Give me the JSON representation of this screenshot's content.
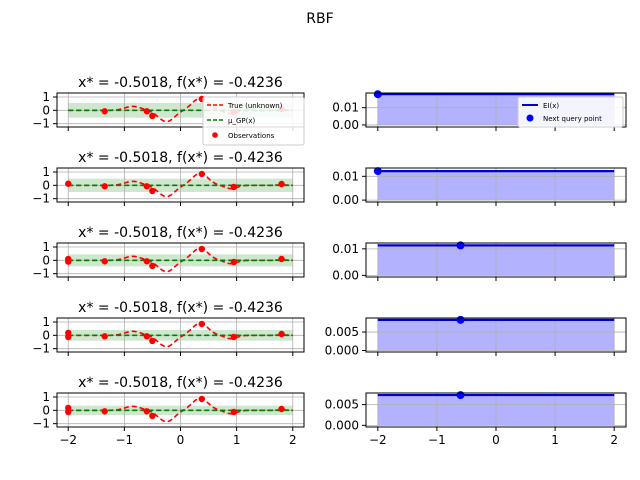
{
  "suptitle": "RBF",
  "chart_data": {
    "type": "line",
    "grid": true,
    "rows": [
      {
        "left": {
          "title": "x* = -0.5018, f(x*) = -0.4236",
          "xlim": [
            -2.2,
            2.2
          ],
          "ylim": [
            -1.25,
            1.3
          ],
          "yticks": [
            {
              "v": 1,
              "label": "1"
            },
            {
              "v": 0,
              "label": "0"
            },
            {
              "v": -1,
              "label": "−1"
            }
          ],
          "observations": [
            [
              -1.35,
              -0.07
            ],
            [
              -0.6,
              -0.07
            ],
            [
              -0.5018,
              -0.42
            ],
            [
              0.38,
              0.85
            ],
            [
              0.95,
              -0.12
            ],
            [
              1.8,
              0.1
            ]
          ],
          "band_halfwidth": 0.55,
          "mean_value": 0.0
        },
        "right": {
          "ylim": [
            -0.0012,
            0.0185
          ],
          "yticks": [
            {
              "v": 0.01,
              "label": "0.01"
            },
            {
              "v": 0,
              "label": "0.00"
            }
          ],
          "ei_value": 0.0178,
          "next_query_point": [
            -2.0,
            0.0178
          ]
        }
      },
      {
        "left": {
          "title": "x* = -0.5018, f(x*) = -0.4236",
          "xlim": [
            -2.2,
            2.2
          ],
          "ylim": [
            -1.25,
            1.3
          ],
          "yticks": [
            {
              "v": 1,
              "label": "1"
            },
            {
              "v": 0,
              "label": "0"
            },
            {
              "v": -1,
              "label": "−1"
            }
          ],
          "observations": [
            [
              -2.0,
              0.12
            ],
            [
              -1.35,
              -0.07
            ],
            [
              -0.6,
              -0.07
            ],
            [
              -0.5018,
              -0.42
            ],
            [
              0.38,
              0.85
            ],
            [
              0.95,
              -0.12
            ],
            [
              1.8,
              0.1
            ]
          ],
          "band_halfwidth": 0.5,
          "mean_value": 0.0
        },
        "right": {
          "ylim": [
            -0.0008,
            0.0135
          ],
          "yticks": [
            {
              "v": 0.01,
              "label": "0.01"
            },
            {
              "v": 0,
              "label": "0.00"
            }
          ],
          "ei_value": 0.0122,
          "next_query_point": [
            -2.0,
            0.0122
          ]
        }
      },
      {
        "left": {
          "title": "x* = -0.5018, f(x*) = -0.4236",
          "xlim": [
            -2.2,
            2.2
          ],
          "ylim": [
            -1.25,
            1.3
          ],
          "yticks": [
            {
              "v": 1,
              "label": "1"
            },
            {
              "v": 0,
              "label": "0"
            },
            {
              "v": -1,
              "label": "−1"
            }
          ],
          "observations": [
            [
              -2.0,
              0.1
            ],
            [
              -2.0,
              -0.1
            ],
            [
              -1.35,
              -0.07
            ],
            [
              -0.6,
              -0.07
            ],
            [
              -0.5018,
              -0.42
            ],
            [
              0.38,
              0.85
            ],
            [
              0.95,
              -0.12
            ],
            [
              1.8,
              0.1
            ]
          ],
          "band_halfwidth": 0.45,
          "mean_value": 0.0
        },
        "right": {
          "ylim": [
            -0.0006,
            0.0122
          ],
          "yticks": [
            {
              "v": 0.01,
              "label": "0.01"
            },
            {
              "v": 0,
              "label": "0.00"
            }
          ],
          "ei_value": 0.0113,
          "next_query_point": [
            -0.6,
            0.0113
          ]
        }
      },
      {
        "left": {
          "title": "x* = -0.5018, f(x*) = -0.4236",
          "xlim": [
            -2.2,
            2.2
          ],
          "ylim": [
            -1.25,
            1.3
          ],
          "yticks": [
            {
              "v": 1,
              "label": "1"
            },
            {
              "v": 0,
              "label": "0"
            },
            {
              "v": -1,
              "label": "−1"
            }
          ],
          "observations": [
            [
              -2.0,
              0.18
            ],
            [
              -2.0,
              -0.12
            ],
            [
              -1.35,
              -0.07
            ],
            [
              -0.6,
              -0.07
            ],
            [
              -0.5018,
              -0.42
            ],
            [
              0.38,
              0.85
            ],
            [
              0.95,
              -0.12
            ],
            [
              1.8,
              0.1
            ]
          ],
          "band_halfwidth": 0.4,
          "mean_value": 0.0
        },
        "right": {
          "ylim": [
            -0.0004,
            0.0088
          ],
          "yticks": [
            {
              "v": 0.005,
              "label": "0.005"
            },
            {
              "v": 0,
              "label": "0.000"
            }
          ],
          "ei_value": 0.0083,
          "next_query_point": [
            -0.6,
            0.0083
          ]
        }
      },
      {
        "left": {
          "title": "x* = -0.5018, f(x*) = -0.4236",
          "xlim": [
            -2.2,
            2.2
          ],
          "ylim": [
            -1.25,
            1.3
          ],
          "yticks": [
            {
              "v": 1,
              "label": "1"
            },
            {
              "v": 0,
              "label": "0"
            },
            {
              "v": -1,
              "label": "−1"
            }
          ],
          "observations": [
            [
              -2.0,
              0.18
            ],
            [
              -2.0,
              -0.12
            ],
            [
              -1.35,
              -0.07
            ],
            [
              -0.6,
              -0.07
            ],
            [
              -0.5018,
              -0.42
            ],
            [
              0.38,
              0.85
            ],
            [
              0.95,
              -0.12
            ],
            [
              1.8,
              0.1
            ]
          ],
          "band_halfwidth": 0.35,
          "mean_value": 0.0
        },
        "right": {
          "ylim": [
            -0.0004,
            0.0078
          ],
          "yticks": [
            {
              "v": 0.005,
              "label": "0.005"
            },
            {
              "v": 0,
              "label": "0.000"
            }
          ],
          "ei_value": 0.0073,
          "next_query_point": [
            -0.6,
            0.0073
          ]
        }
      }
    ],
    "x_ticks": [
      {
        "v": -2,
        "label": "−2"
      },
      {
        "v": -1,
        "label": "−1"
      },
      {
        "v": 0,
        "label": "0"
      },
      {
        "v": 1,
        "label": "1"
      },
      {
        "v": 2,
        "label": "2"
      }
    ],
    "legend_left": {
      "placement": "upper-right",
      "entries": [
        "True (unknown)",
        "μ_GP(x)",
        "Observations"
      ]
    },
    "legend_right": {
      "placement": "upper-right",
      "entries": [
        "EI(x)",
        "Next query point"
      ]
    },
    "colors": {
      "true_function": "#ff0000",
      "gp_mean": "#008000",
      "gp_band": "#cfe6cf",
      "observations": "#ff0000",
      "ei_line": "#0000cc",
      "ei_fill": "#b2b2ff",
      "next_query": "#0000ff",
      "grid": "#b0b0b0"
    }
  }
}
